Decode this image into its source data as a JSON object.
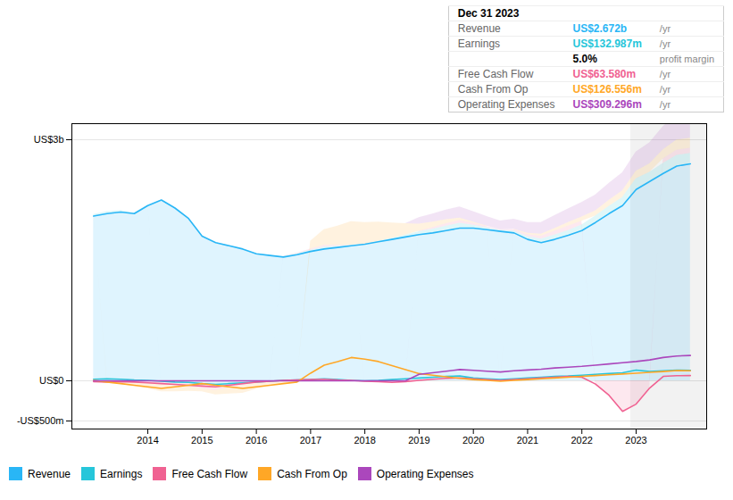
{
  "chart_data": {
    "type": "area",
    "x": [
      2013.0,
      2013.25,
      2013.5,
      2013.75,
      2014.0,
      2014.25,
      2014.5,
      2014.75,
      2015.0,
      2015.25,
      2015.5,
      2015.75,
      2016.0,
      2016.25,
      2016.5,
      2016.75,
      2017.0,
      2017.25,
      2017.5,
      2017.75,
      2018.0,
      2018.25,
      2018.5,
      2018.75,
      2019.0,
      2019.25,
      2019.5,
      2019.75,
      2020.0,
      2020.25,
      2020.5,
      2020.75,
      2021.0,
      2021.25,
      2021.5,
      2021.75,
      2022.0,
      2022.25,
      2022.5,
      2022.75,
      2023.0,
      2023.25,
      2023.5,
      2023.75,
      2024.0
    ],
    "series": [
      {
        "name": "Revenue",
        "color": "#29b6f6",
        "values": [
          2050,
          2080,
          2100,
          2080,
          2180,
          2250,
          2150,
          2020,
          1800,
          1720,
          1680,
          1640,
          1580,
          1560,
          1540,
          1570,
          1610,
          1640,
          1660,
          1680,
          1700,
          1730,
          1760,
          1790,
          1820,
          1840,
          1870,
          1900,
          1900,
          1880,
          1860,
          1840,
          1760,
          1720,
          1760,
          1810,
          1870,
          1970,
          2080,
          2180,
          2380,
          2480,
          2580,
          2672,
          2700
        ]
      },
      {
        "name": "Earnings",
        "color": "#26c6da",
        "values": [
          20,
          25,
          20,
          10,
          5,
          -5,
          -15,
          -20,
          -35,
          -45,
          -35,
          -25,
          -15,
          -5,
          5,
          10,
          15,
          25,
          15,
          5,
          0,
          5,
          15,
          25,
          35,
          45,
          55,
          60,
          35,
          25,
          15,
          25,
          35,
          45,
          55,
          60,
          70,
          80,
          90,
          100,
          133,
          115,
          125,
          133,
          130
        ]
      },
      {
        "name": "Free Cash Flow",
        "color": "#f06292",
        "values": [
          -10,
          -15,
          -10,
          -15,
          -25,
          -35,
          -45,
          -55,
          -65,
          -75,
          -55,
          -35,
          -15,
          -5,
          5,
          10,
          15,
          20,
          10,
          5,
          -5,
          -10,
          -20,
          -10,
          5,
          20,
          30,
          35,
          25,
          15,
          5,
          15,
          25,
          35,
          45,
          55,
          45,
          -40,
          -180,
          -380,
          -290,
          -90,
          55,
          64,
          65
        ]
      },
      {
        "name": "Cash From Op",
        "color": "#ffa726",
        "values": [
          5,
          -15,
          -35,
          -55,
          -75,
          -95,
          -75,
          -55,
          -35,
          -55,
          -75,
          -95,
          -75,
          -55,
          -35,
          -15,
          95,
          195,
          240,
          290,
          270,
          240,
          190,
          140,
          90,
          70,
          50,
          30,
          15,
          5,
          -5,
          5,
          15,
          25,
          35,
          45,
          55,
          65,
          75,
          85,
          95,
          105,
          115,
          127,
          125
        ]
      },
      {
        "name": "Operating Expenses",
        "color": "#ab47bc",
        "values": [
          0,
          0,
          0,
          0,
          0,
          0,
          0,
          0,
          0,
          0,
          0,
          0,
          0,
          0,
          0,
          0,
          0,
          0,
          0,
          0,
          0,
          0,
          0,
          0,
          80,
          100,
          120,
          140,
          130,
          120,
          110,
          125,
          135,
          145,
          160,
          170,
          180,
          195,
          210,
          225,
          240,
          260,
          290,
          309,
          315
        ]
      }
    ],
    "xlim": [
      2012.6,
      2024.3
    ],
    "xticks": [
      2014,
      2015,
      2016,
      2017,
      2018,
      2019,
      2020,
      2021,
      2022,
      2023
    ],
    "ylim": [
      -600,
      3200
    ],
    "yticks": [
      {
        "value": 3000,
        "label": "US$3b"
      },
      {
        "value": 0,
        "label": "US$0"
      },
      {
        "value": -500,
        "label": "-US$500m"
      }
    ],
    "grid": true,
    "legend": "bottom",
    "highlight": [
      2022.9,
      2024.3
    ],
    "tooltip": {
      "title": "Dec 31 2023",
      "rows": [
        {
          "label": "Revenue",
          "value": "US$2.672b",
          "suffix": "/yr",
          "color": "#29b6f6"
        },
        {
          "label": "Earnings",
          "value": "US$132.987m",
          "suffix": "/yr",
          "color": "#26c6da"
        },
        {
          "label": null,
          "value": "5.0%",
          "suffix": "profit margin"
        },
        {
          "label": "Free Cash Flow",
          "value": "US$63.580m",
          "suffix": "/yr",
          "color": "#f06292"
        },
        {
          "label": "Cash From Op",
          "value": "US$126.556m",
          "suffix": "/yr",
          "color": "#ffa726"
        },
        {
          "label": "Operating Expenses",
          "value": "US$309.296m",
          "suffix": "/yr",
          "color": "#ab47bc"
        }
      ]
    }
  }
}
